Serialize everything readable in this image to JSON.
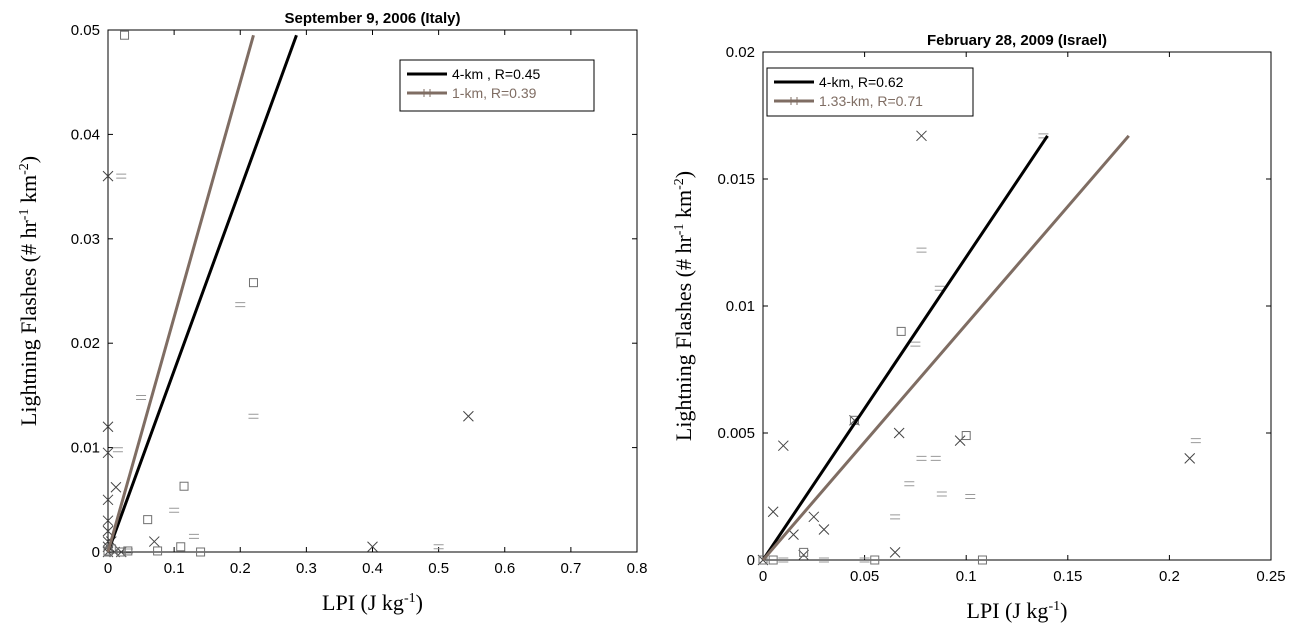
{
  "chart_data": [
    {
      "type": "scatter",
      "title": "September 9, 2006 (Italy)",
      "xlabel": {
        "main": "LPI (J kg",
        "sup": "-1",
        "end": ")"
      },
      "ylabel": {
        "p1": "Lightning Flashes (# hr",
        "s1": "-1",
        "p2": " km",
        "s2": "-2",
        "p3": ")"
      },
      "xlim": [
        0,
        0.8
      ],
      "ylim": [
        0,
        0.05
      ],
      "xticks": [
        0,
        0.1,
        0.2,
        0.3,
        0.4,
        0.5,
        0.6,
        0.7,
        0.8
      ],
      "xtick_labels": [
        "0",
        "0.1",
        "0.2",
        "0.3",
        "0.4",
        "0.5",
        "0.6",
        "0.7",
        "0.8"
      ],
      "yticks": [
        0,
        0.01,
        0.02,
        0.03,
        0.04,
        0.05
      ],
      "ytick_labels": [
        "0",
        "0.01",
        "0.02",
        "0.03",
        "0.04",
        "0.05"
      ],
      "legend_position": "top-right",
      "series": [
        {
          "name": "4-km , R=0.45",
          "color": "#000000",
          "marker": "x",
          "fit": {
            "x": [
              0,
              0.285
            ],
            "y": [
              0,
              0.0495
            ]
          },
          "points": [
            [
              0,
              0
            ],
            [
              0,
              0.0005
            ],
            [
              0,
              0.001
            ],
            [
              0,
              0.002
            ],
            [
              0,
              0.003
            ],
            [
              0,
              0.005
            ],
            [
              0,
              0.0095
            ],
            [
              0,
              0.012
            ],
            [
              0,
              0.036
            ],
            [
              0.005,
              0.001
            ],
            [
              0.01,
              0
            ],
            [
              0.012,
              0.0062
            ],
            [
              0.02,
              0
            ],
            [
              0.07,
              0.001
            ],
            [
              0.4,
              0.0005
            ],
            [
              0.545,
              0.013
            ]
          ]
        },
        {
          "name": "1-km,  R=0.39",
          "color": "#7f6d63",
          "marker": "plus",
          "fit": {
            "x": [
              0,
              0.22
            ],
            "y": [
              0,
              0.0495
            ]
          },
          "points": [
            [
              0.02,
              0.036
            ],
            [
              0.015,
              0.0098
            ],
            [
              0.05,
              0.0148
            ],
            [
              0.2,
              0.0237
            ],
            [
              0.22,
              0.013
            ],
            [
              0.1,
              0.004
            ],
            [
              0.13,
              0.0015
            ],
            [
              0.5,
              0.0005
            ],
            [
              0.03,
              0.0001
            ]
          ]
        },
        {
          "name": "",
          "color": "#707070",
          "marker": "square",
          "points": [
            [
              0,
              0
            ],
            [
              0,
              0.0001
            ],
            [
              0.005,
              0.0003
            ],
            [
              0.02,
              0
            ],
            [
              0.025,
              0.0495
            ],
            [
              0.03,
              0.0001
            ],
            [
              0.06,
              0.0031
            ],
            [
              0.075,
              0.0001
            ],
            [
              0.11,
              0.0005
            ],
            [
              0.115,
              0.0063
            ],
            [
              0.14,
              0
            ],
            [
              0.22,
              0.0258
            ]
          ]
        }
      ]
    },
    {
      "type": "scatter",
      "title": "February 28, 2009 (Israel)",
      "xlabel": {
        "main": "LPI (J kg",
        "sup": "-1",
        "end": ")"
      },
      "ylabel": {
        "p1": "Lightning Flashes (# hr",
        "s1": "-1",
        "p2": " km",
        "s2": "-2",
        "p3": ")"
      },
      "xlim": [
        0,
        0.25
      ],
      "ylim": [
        0,
        0.02
      ],
      "xticks": [
        0,
        0.05,
        0.1,
        0.15,
        0.2,
        0.25
      ],
      "xtick_labels": [
        "0",
        "0.05",
        "0.1",
        "0.15",
        "0.2",
        "0.25"
      ],
      "yticks": [
        0,
        0.005,
        0.01,
        0.015,
        0.02
      ],
      "ytick_labels": [
        "0",
        "0.005",
        "0.01",
        "0.015",
        "0.02"
      ],
      "legend_position": "top-left",
      "series": [
        {
          "name": "4-km, R=0.62",
          "color": "#000000",
          "marker": "x",
          "fit": {
            "x": [
              0,
              0.14
            ],
            "y": [
              0,
              0.0167
            ]
          },
          "points": [
            [
              0,
              0
            ],
            [
              0.005,
              0.0019
            ],
            [
              0.01,
              0.0045
            ],
            [
              0.015,
              0.001
            ],
            [
              0.02,
              0.0002
            ],
            [
              0.025,
              0.0017
            ],
            [
              0.03,
              0.0012
            ],
            [
              0.045,
              0.0055
            ],
            [
              0.065,
              0.0003
            ],
            [
              0.067,
              0.005
            ],
            [
              0.078,
              0.0167
            ],
            [
              0.097,
              0.0047
            ],
            [
              0.21,
              0.004
            ]
          ]
        },
        {
          "name": "1.33-km, R=0.71",
          "color": "#7f6d63",
          "marker": "plus",
          "fit": {
            "x": [
              0,
              0.18
            ],
            "y": [
              0,
              0.0167
            ]
          },
          "points": [
            [
              0.078,
              0.0122
            ],
            [
              0.087,
              0.0107
            ],
            [
              0.075,
              0.0085
            ],
            [
              0.065,
              0.0017
            ],
            [
              0.072,
              0.003
            ],
            [
              0.078,
              0.004
            ],
            [
              0.085,
              0.004
            ],
            [
              0.088,
              0.0026
            ],
            [
              0.102,
              0.0025
            ],
            [
              0.213,
              0.0047
            ],
            [
              0.138,
              0.0167
            ],
            [
              0.01,
              0
            ],
            [
              0.03,
              0
            ],
            [
              0.05,
              0
            ]
          ]
        },
        {
          "name": "",
          "color": "#707070",
          "marker": "square",
          "points": [
            [
              0,
              0
            ],
            [
              0.005,
              0
            ],
            [
              0.02,
              0.0003
            ],
            [
              0.045,
              0.0055
            ],
            [
              0.055,
              0
            ],
            [
              0.068,
              0.009
            ],
            [
              0.1,
              0.0049
            ],
            [
              0.108,
              0
            ]
          ]
        }
      ]
    }
  ]
}
